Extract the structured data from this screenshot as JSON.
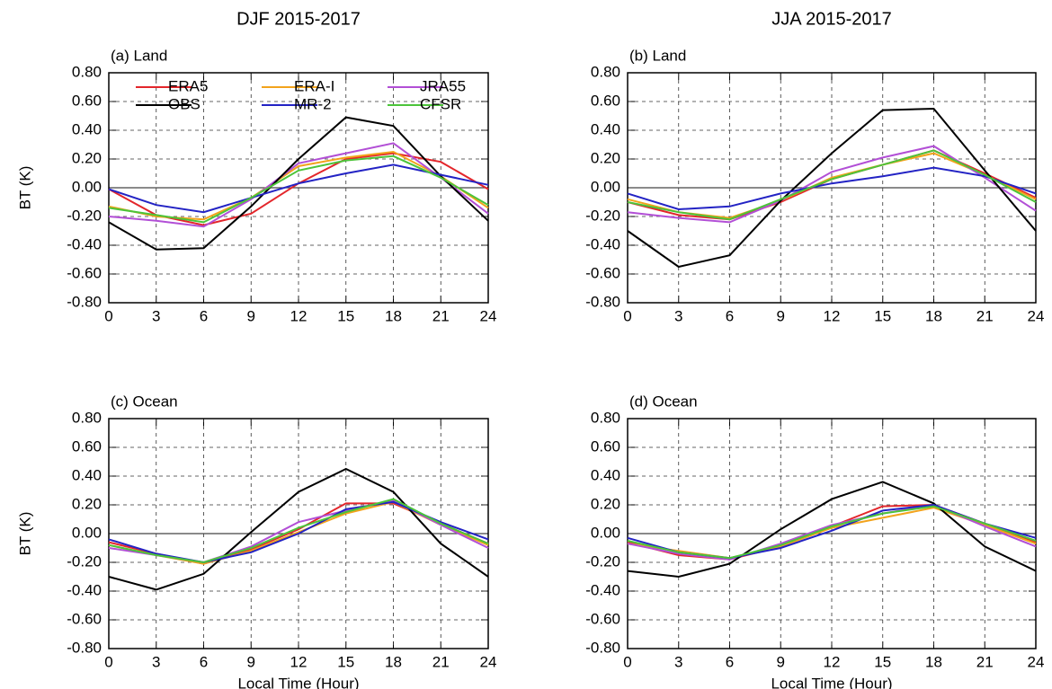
{
  "chart_data": [
    {
      "type": "line",
      "title": "DJF 2015-2017",
      "panel_label": "(a) Land",
      "ylabel": "BT (K)",
      "x": [
        0,
        3,
        6,
        9,
        12,
        15,
        18,
        21,
        24
      ],
      "xlim": [
        0,
        24
      ],
      "xticks": [
        0,
        3,
        6,
        9,
        12,
        15,
        18,
        21,
        24
      ],
      "ylim": [
        -0.8,
        0.8
      ],
      "yticks": [
        {
          "value": 0.8,
          "label": "0.80"
        },
        {
          "value": 0.6,
          "label": "0.60"
        },
        {
          "value": 0.4,
          "label": "0.40"
        },
        {
          "value": 0.2,
          "label": "0.20"
        },
        {
          "value": 0,
          "label": "0.00"
        },
        {
          "value": -0.2,
          "label": "-0.20"
        },
        {
          "value": -0.4,
          "label": "-0.40"
        },
        {
          "value": -0.6,
          "label": "-0.60"
        },
        {
          "value": -0.8,
          "label": "-0.80"
        }
      ],
      "grid": true,
      "zero_line": true,
      "legend": "upper left",
      "series": [
        {
          "name": "ERA5",
          "color": "#e3262b",
          "values": [
            -0.01,
            -0.19,
            -0.26,
            -0.18,
            0.03,
            0.2,
            0.24,
            0.18,
            -0.01
          ]
        },
        {
          "name": "ERA-I",
          "color": "#f2a31c",
          "values": [
            -0.13,
            -0.2,
            -0.22,
            -0.07,
            0.15,
            0.21,
            0.25,
            0.08,
            -0.14
          ]
        },
        {
          "name": "JRA55",
          "color": "#b24fd6",
          "values": [
            -0.2,
            -0.23,
            -0.27,
            -0.08,
            0.17,
            0.24,
            0.31,
            0.07,
            -0.18
          ]
        },
        {
          "name": "OBS",
          "color": "#000000",
          "values": [
            -0.24,
            -0.43,
            -0.42,
            -0.13,
            0.2,
            0.49,
            0.43,
            0.08,
            -0.23
          ]
        },
        {
          "name": "MR-2",
          "color": "#2323c4",
          "values": [
            -0.01,
            -0.12,
            -0.17,
            -0.07,
            0.03,
            0.1,
            0.16,
            0.09,
            0.02
          ]
        },
        {
          "name": "CFSR",
          "color": "#4cc43a",
          "values": [
            -0.14,
            -0.19,
            -0.24,
            -0.07,
            0.12,
            0.19,
            0.22,
            0.07,
            -0.12
          ]
        }
      ]
    },
    {
      "type": "line",
      "title": "JJA 2015-2017",
      "panel_label": "(b) Land",
      "x": [
        0,
        3,
        6,
        9,
        12,
        15,
        18,
        21,
        24
      ],
      "xlim": [
        0,
        24
      ],
      "xticks": [
        0,
        3,
        6,
        9,
        12,
        15,
        18,
        21,
        24
      ],
      "ylim": [
        -0.8,
        0.8
      ],
      "yticks": [
        {
          "value": 0.8,
          "label": "0.80"
        },
        {
          "value": 0.6,
          "label": "0.60"
        },
        {
          "value": 0.4,
          "label": "0.40"
        },
        {
          "value": 0.2,
          "label": "0.20"
        },
        {
          "value": 0,
          "label": "0.00"
        },
        {
          "value": -0.2,
          "label": "-0.20"
        },
        {
          "value": -0.4,
          "label": "-0.40"
        },
        {
          "value": -0.6,
          "label": "-0.60"
        },
        {
          "value": -0.8,
          "label": "-0.80"
        }
      ],
      "grid": true,
      "zero_line": true,
      "series": [
        {
          "color": "#e3262b",
          "values": [
            -0.1,
            -0.19,
            -0.22,
            -0.1,
            0.06,
            0.16,
            0.26,
            0.1,
            -0.07
          ]
        },
        {
          "color": "#f2a31c",
          "values": [
            -0.08,
            -0.17,
            -0.21,
            -0.09,
            0.07,
            0.16,
            0.24,
            0.09,
            -0.08
          ]
        },
        {
          "color": "#b24fd6",
          "values": [
            -0.17,
            -0.21,
            -0.24,
            -0.09,
            0.11,
            0.21,
            0.29,
            0.07,
            -0.16
          ]
        },
        {
          "color": "#000000",
          "values": [
            -0.3,
            -0.55,
            -0.47,
            -0.09,
            0.24,
            0.54,
            0.55,
            0.12,
            -0.3
          ]
        },
        {
          "color": "#2323c4",
          "values": [
            -0.04,
            -0.15,
            -0.13,
            -0.04,
            0.03,
            0.08,
            0.14,
            0.08,
            -0.04
          ]
        },
        {
          "color": "#4cc43a",
          "values": [
            -0.1,
            -0.17,
            -0.22,
            -0.08,
            0.06,
            0.16,
            0.26,
            0.09,
            -0.1
          ]
        }
      ]
    },
    {
      "type": "line",
      "panel_label": "(c) Ocean",
      "ylabel": "BT (K)",
      "xlabel": "Local Time (Hour)",
      "x": [
        0,
        3,
        6,
        9,
        12,
        15,
        18,
        21,
        24
      ],
      "xlim": [
        0,
        24
      ],
      "xticks": [
        0,
        3,
        6,
        9,
        12,
        15,
        18,
        21,
        24
      ],
      "ylim": [
        -0.8,
        0.8
      ],
      "yticks": [
        {
          "value": 0.8,
          "label": "0.80"
        },
        {
          "value": 0.6,
          "label": "0.60"
        },
        {
          "value": 0.4,
          "label": "0.40"
        },
        {
          "value": 0.2,
          "label": "0.20"
        },
        {
          "value": 0,
          "label": "0.00"
        },
        {
          "value": -0.2,
          "label": "-0.20"
        },
        {
          "value": -0.4,
          "label": "-0.40"
        },
        {
          "value": -0.6,
          "label": "-0.60"
        },
        {
          "value": -0.8,
          "label": "-0.80"
        }
      ],
      "grid": true,
      "zero_line": true,
      "series": [
        {
          "color": "#e3262b",
          "values": [
            -0.06,
            -0.14,
            -0.21,
            -0.11,
            0.03,
            0.21,
            0.21,
            0.07,
            -0.07
          ]
        },
        {
          "color": "#f2a31c",
          "values": [
            -0.08,
            -0.15,
            -0.21,
            -0.12,
            0.01,
            0.14,
            0.22,
            0.06,
            -0.08
          ]
        },
        {
          "color": "#b24fd6",
          "values": [
            -0.1,
            -0.15,
            -0.2,
            -0.09,
            0.08,
            0.16,
            0.23,
            0.06,
            -0.1
          ]
        },
        {
          "color": "#000000",
          "values": [
            -0.3,
            -0.39,
            -0.28,
            0.01,
            0.29,
            0.45,
            0.29,
            -0.07,
            -0.3
          ]
        },
        {
          "color": "#2323c4",
          "values": [
            -0.04,
            -0.14,
            -0.2,
            -0.13,
            0.0,
            0.17,
            0.22,
            0.08,
            -0.04
          ]
        },
        {
          "color": "#4cc43a",
          "values": [
            -0.08,
            -0.15,
            -0.2,
            -0.1,
            0.04,
            0.15,
            0.24,
            0.07,
            -0.07
          ]
        }
      ]
    },
    {
      "type": "line",
      "panel_label": "(d) Ocean",
      "xlabel": "Local Time (Hour)",
      "x": [
        0,
        3,
        6,
        9,
        12,
        15,
        18,
        21,
        24
      ],
      "xlim": [
        0,
        24
      ],
      "xticks": [
        0,
        3,
        6,
        9,
        12,
        15,
        18,
        21,
        24
      ],
      "ylim": [
        -0.8,
        0.8
      ],
      "yticks": [
        {
          "value": 0.8,
          "label": "0.80"
        },
        {
          "value": 0.6,
          "label": "0.60"
        },
        {
          "value": 0.4,
          "label": "0.40"
        },
        {
          "value": 0.2,
          "label": "0.20"
        },
        {
          "value": 0,
          "label": "0.00"
        },
        {
          "value": -0.2,
          "label": "-0.20"
        },
        {
          "value": -0.4,
          "label": "-0.40"
        },
        {
          "value": -0.6,
          "label": "-0.60"
        },
        {
          "value": -0.8,
          "label": "-0.80"
        }
      ],
      "grid": true,
      "zero_line": true,
      "series": [
        {
          "color": "#e3262b",
          "values": [
            -0.06,
            -0.15,
            -0.18,
            -0.09,
            0.05,
            0.19,
            0.2,
            0.07,
            -0.06
          ]
        },
        {
          "color": "#f2a31c",
          "values": [
            -0.07,
            -0.12,
            -0.17,
            -0.09,
            0.04,
            0.11,
            0.18,
            0.06,
            -0.07
          ]
        },
        {
          "color": "#b24fd6",
          "values": [
            -0.07,
            -0.14,
            -0.18,
            -0.07,
            0.06,
            0.14,
            0.2,
            0.05,
            -0.09
          ]
        },
        {
          "color": "#000000",
          "values": [
            -0.26,
            -0.3,
            -0.21,
            0.03,
            0.24,
            0.36,
            0.21,
            -0.09,
            -0.26
          ]
        },
        {
          "color": "#2323c4",
          "values": [
            -0.03,
            -0.13,
            -0.17,
            -0.1,
            0.02,
            0.16,
            0.2,
            0.07,
            -0.03
          ]
        },
        {
          "color": "#4cc43a",
          "values": [
            -0.05,
            -0.13,
            -0.17,
            -0.08,
            0.05,
            0.14,
            0.19,
            0.07,
            -0.05
          ]
        }
      ]
    }
  ]
}
